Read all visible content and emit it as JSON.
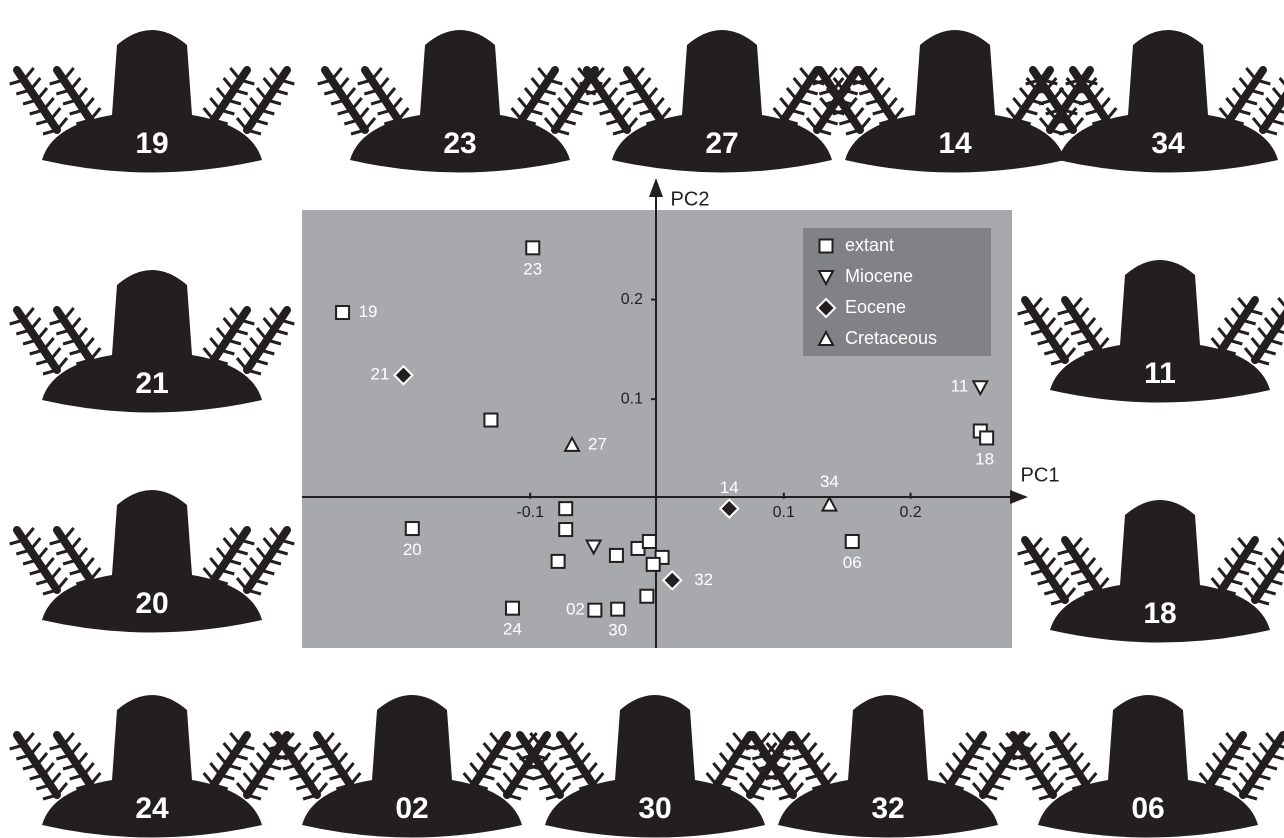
{
  "chart_data": {
    "type": "scatter",
    "x_label": "PC1",
    "y_label": "PC2",
    "xlim": [
      -0.28,
      0.28
    ],
    "ylim": [
      -0.15,
      0.29
    ],
    "xticks": [
      -0.1,
      0.1,
      0.2
    ],
    "yticks": [
      0.1,
      0.2
    ],
    "legend": "top-right",
    "series": [
      {
        "name": "extant",
        "marker": "square",
        "color": "#ffffff",
        "x": [
          -0.098,
          -0.248,
          -0.131,
          -0.193,
          -0.072,
          -0.072,
          -0.078,
          -0.032,
          -0.015,
          -0.006,
          0.004,
          -0.003,
          -0.008,
          -0.114,
          -0.049,
          -0.031,
          0.154,
          0.255,
          0.26
        ],
        "values": [
          0.252,
          0.187,
          0.079,
          -0.03,
          -0.01,
          -0.031,
          -0.063,
          -0.057,
          -0.05,
          -0.043,
          -0.059,
          -0.066,
          -0.098,
          -0.11,
          -0.112,
          -0.111,
          -0.043,
          0.068,
          0.061
        ],
        "labels": [
          "23",
          "19",
          null,
          "20",
          null,
          null,
          null,
          null,
          null,
          null,
          null,
          null,
          null,
          "24",
          "02",
          "30",
          "06",
          null,
          "18"
        ]
      },
      {
        "name": "Miocene",
        "marker": "triangle-down",
        "color": "#ffffff",
        "x": [
          -0.05,
          0.255
        ],
        "values": [
          -0.048,
          0.112
        ],
        "labels": [
          null,
          "11"
        ]
      },
      {
        "name": "Eocene",
        "marker": "diamond",
        "color": "#231f20",
        "x": [
          -0.2,
          0.057,
          0.012
        ],
        "values": [
          0.124,
          -0.01,
          -0.082
        ],
        "labels": [
          "21",
          "14",
          "32"
        ]
      },
      {
        "name": "Cretaceous",
        "marker": "triangle-up",
        "color": "#ffffff",
        "x": [
          -0.067,
          0.136
        ],
        "values": [
          0.054,
          -0.006
        ],
        "labels": [
          "27",
          "34"
        ]
      }
    ]
  },
  "silhouettes": [
    "19",
    "23",
    "27",
    "14",
    "34",
    "21",
    "11",
    "20",
    "18",
    "24",
    "02",
    "30",
    "32",
    "06"
  ]
}
